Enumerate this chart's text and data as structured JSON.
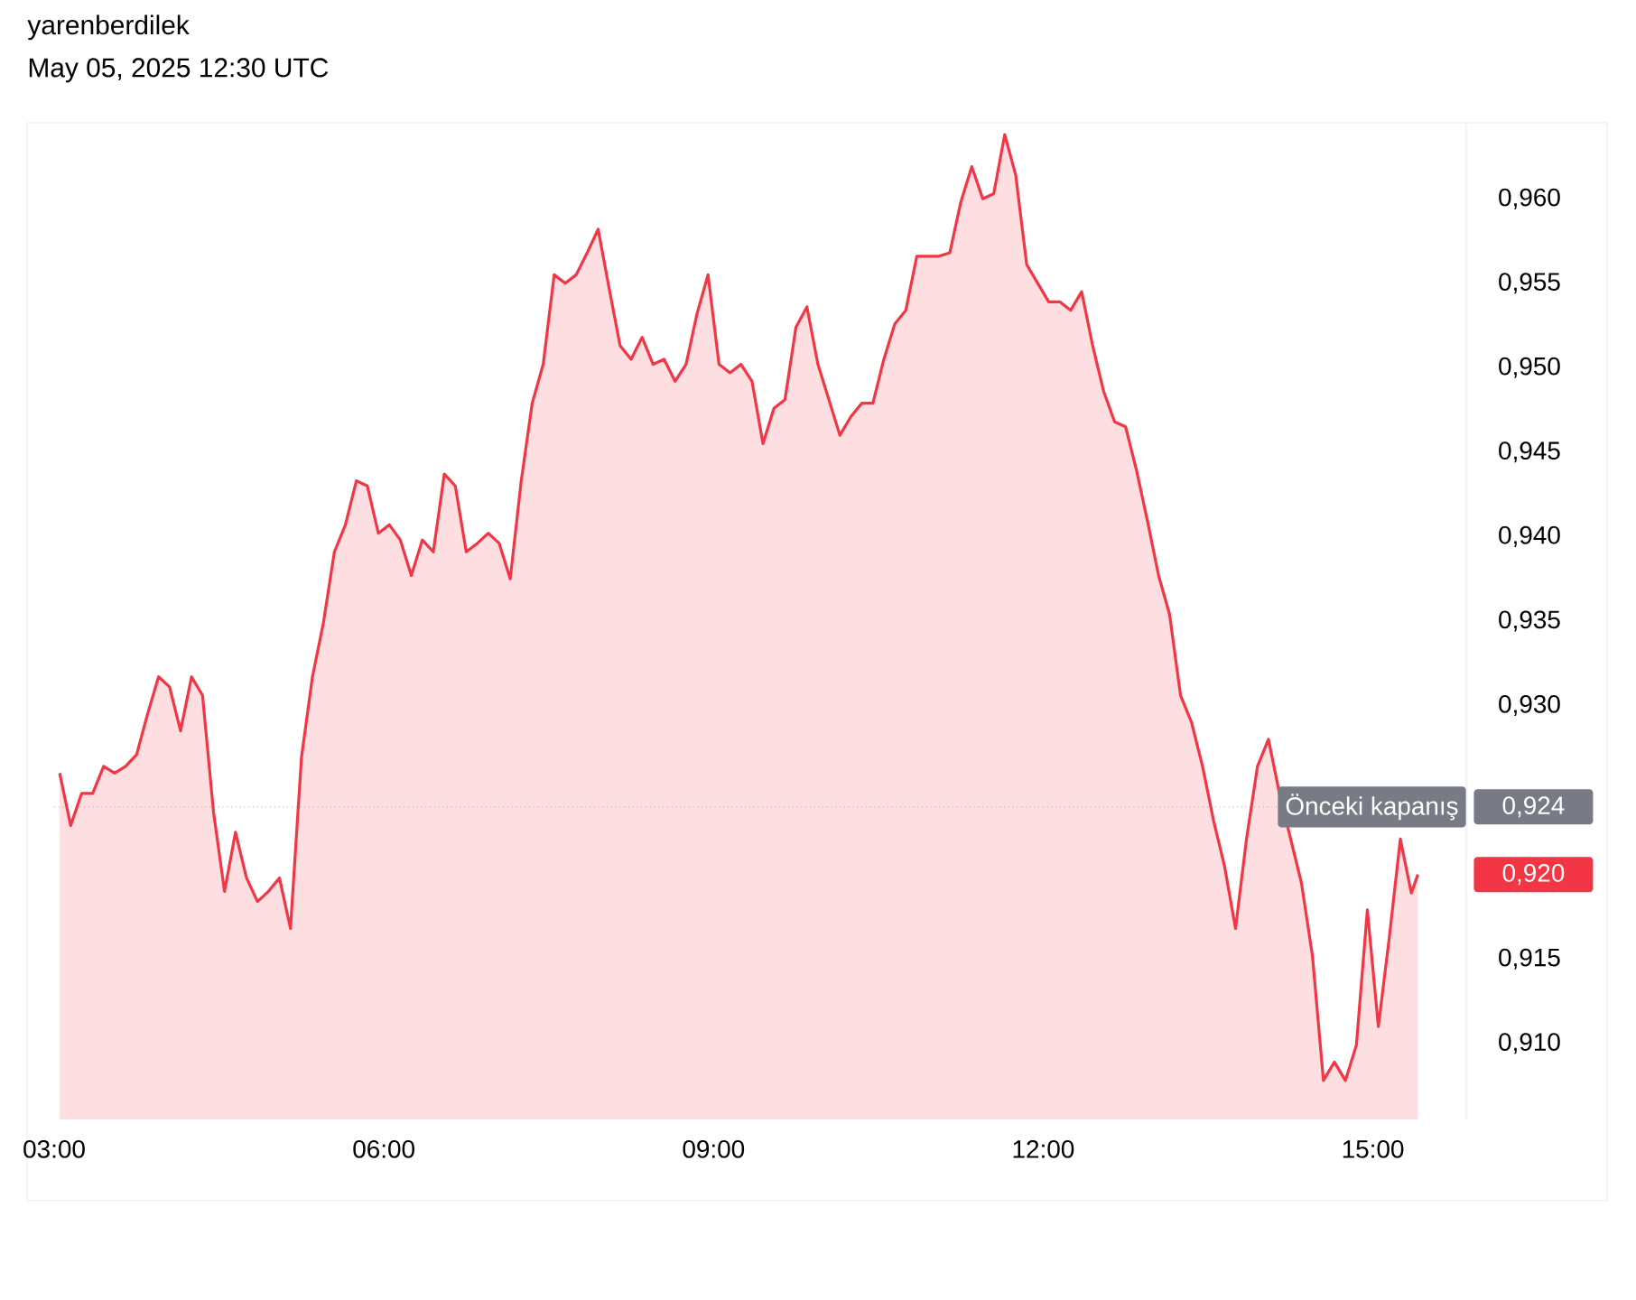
{
  "chart_data": {
    "type": "area",
    "title": "yarenberdilek",
    "subtitle": "May 05, 2025 12:30 UTC",
    "x": [
      3.05,
      3.15,
      3.25,
      3.35,
      3.45,
      3.55,
      3.65,
      3.75,
      3.85,
      3.95,
      4.05,
      4.15,
      4.25,
      4.35,
      4.45,
      4.55,
      4.65,
      4.75,
      4.85,
      4.95,
      5.05,
      5.15,
      5.25,
      5.35,
      5.45,
      5.55,
      5.65,
      5.75,
      5.85,
      5.95,
      6.05,
      6.15,
      6.25,
      6.35,
      6.45,
      6.55,
      6.65,
      6.75,
      6.85,
      6.95,
      7.05,
      7.15,
      7.25,
      7.35,
      7.45,
      7.55,
      7.65,
      7.75,
      7.85,
      7.95,
      8.05,
      8.15,
      8.25,
      8.35,
      8.45,
      8.55,
      8.65,
      8.75,
      8.85,
      8.95,
      9.05,
      9.15,
      9.25,
      9.35,
      9.45,
      9.55,
      9.65,
      9.75,
      9.85,
      9.95,
      10.05,
      10.15,
      10.25,
      10.35,
      10.45,
      10.55,
      10.65,
      10.75,
      10.85,
      10.95,
      11.05,
      11.15,
      11.25,
      11.35,
      11.45,
      11.55,
      11.65,
      11.75,
      11.85,
      11.95,
      12.05,
      12.15,
      12.25,
      12.35,
      12.45,
      12.55,
      12.65,
      12.75,
      12.85,
      12.95,
      13.05,
      13.15,
      13.25,
      13.35,
      13.45,
      13.55,
      13.65,
      13.75,
      13.85,
      13.95,
      14.05,
      14.15,
      14.25,
      14.35,
      14.45,
      14.55,
      14.65,
      14.75,
      14.85,
      14.95,
      15.05,
      15.15,
      15.25,
      15.35,
      15.41
    ],
    "series": [
      {
        "color": "#f23645",
        "values": [
          0.926,
          0.9229,
          0.9248,
          0.9248,
          0.9264,
          0.926,
          0.9264,
          0.9271,
          0.9295,
          0.9317,
          0.9311,
          0.9285,
          0.9317,
          0.9306,
          0.9237,
          0.919,
          0.9225,
          0.9198,
          0.9184,
          0.919,
          0.9198,
          0.9168,
          0.9269,
          0.9317,
          0.9349,
          0.9391,
          0.9407,
          0.9433,
          0.943,
          0.9402,
          0.9407,
          0.9398,
          0.9377,
          0.9398,
          0.9391,
          0.9437,
          0.943,
          0.9391,
          0.9396,
          0.9402,
          0.9396,
          0.9375,
          0.9433,
          0.9479,
          0.9502,
          0.9555,
          0.955,
          0.9555,
          0.9568,
          0.9582,
          0.9547,
          0.9513,
          0.9505,
          0.9518,
          0.9502,
          0.9505,
          0.9492,
          0.9502,
          0.9532,
          0.9555,
          0.9502,
          0.9497,
          0.9502,
          0.9492,
          0.9455,
          0.9476,
          0.9481,
          0.9524,
          0.9536,
          0.9502,
          0.9481,
          0.946,
          0.9471,
          0.9479,
          0.9479,
          0.9505,
          0.9526,
          0.9534,
          0.9566,
          0.9566,
          0.9566,
          0.9568,
          0.9598,
          0.9619,
          0.96,
          0.9603,
          0.9638,
          0.9614,
          0.9561,
          0.955,
          0.9539,
          0.9539,
          0.9534,
          0.9545,
          0.9513,
          0.9486,
          0.9468,
          0.9465,
          0.9439,
          0.9409,
          0.9377,
          0.9354,
          0.9306,
          0.929,
          0.9264,
          0.9232,
          0.9205,
          0.9168,
          0.9221,
          0.9264,
          0.928,
          0.9248,
          null,
          0.9195,
          0.9152,
          0.9078,
          0.9089,
          0.9078,
          0.9099,
          0.9179,
          0.911,
          0.9163,
          0.9221,
          0.9189,
          0.92
        ]
      }
    ],
    "xlim": [
      3.0,
      15.85
    ],
    "ylim": [
      0.9055,
      0.9645
    ],
    "xticks": [
      {
        "value": 3,
        "label": "03:00"
      },
      {
        "value": 6,
        "label": "06:00"
      },
      {
        "value": 9,
        "label": "09:00"
      },
      {
        "value": 12,
        "label": "12:00"
      },
      {
        "value": 15,
        "label": "15:00"
      }
    ],
    "yticks": [
      {
        "value": 0.91,
        "label": "0,910"
      },
      {
        "value": 0.915,
        "label": "0,915"
      },
      {
        "value": 0.93,
        "label": "0,930"
      },
      {
        "value": 0.935,
        "label": "0,935"
      },
      {
        "value": 0.94,
        "label": "0,940"
      },
      {
        "value": 0.945,
        "label": "0,945"
      },
      {
        "value": 0.95,
        "label": "0,950"
      },
      {
        "value": 0.955,
        "label": "0,955"
      },
      {
        "value": 0.96,
        "label": "0,960"
      }
    ],
    "ref_lines": [
      {
        "axis": "y",
        "value": 0.924,
        "label": "Önceki kapanış",
        "color": "#787b86",
        "line_style": "dotted"
      }
    ],
    "annotations": [
      "0,924",
      "0,920"
    ]
  }
}
